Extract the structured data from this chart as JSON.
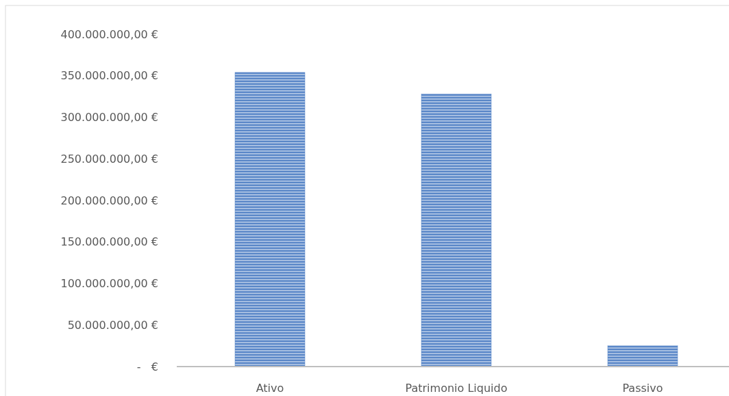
{
  "chart_data": {
    "type": "bar",
    "categories": [
      "Ativo",
      "Patrimonio Liquido",
      "Passivo"
    ],
    "values": [
      354000000,
      328000000,
      25000000
    ],
    "color": "#5a87c8",
    "ylim": [
      0,
      400000000
    ],
    "yticks": [
      {
        "value": 0,
        "label": "-   €"
      },
      {
        "value": 50000000,
        "label": "50.000.000,00 €"
      },
      {
        "value": 100000000,
        "label": "100.000.000,00 €"
      },
      {
        "value": 150000000,
        "label": "150.000.000,00 €"
      },
      {
        "value": 200000000,
        "label": "200.000.000,00 €"
      },
      {
        "value": 250000000,
        "label": "250.000.000,00 €"
      },
      {
        "value": 300000000,
        "label": "300.000.000,00 €"
      },
      {
        "value": 350000000,
        "label": "350.000.000,00 €"
      },
      {
        "value": 400000000,
        "label": "400.000.000,00 €"
      }
    ],
    "grid": false
  }
}
